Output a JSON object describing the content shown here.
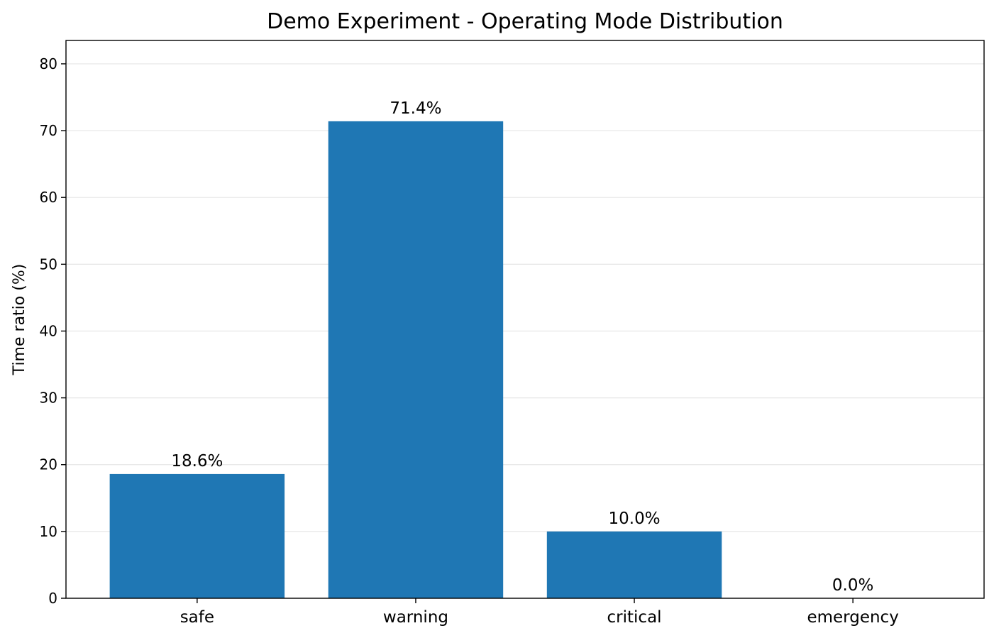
{
  "chart_data": {
    "type": "bar",
    "title": "Demo Experiment - Operating Mode Distribution",
    "xlabel": "",
    "ylabel": "Time ratio (%)",
    "categories": [
      "safe",
      "warning",
      "critical",
      "emergency"
    ],
    "values": [
      18.6,
      71.4,
      10.0,
      0.0
    ],
    "data_labels": [
      "18.6%",
      "71.4%",
      "10.0%",
      "0.0%"
    ],
    "ylim": [
      0,
      83.5
    ],
    "yticks": [
      0,
      10,
      20,
      30,
      40,
      50,
      60,
      70,
      80
    ],
    "grid": "y",
    "legend": "none",
    "bar_color": "#1f77b4",
    "grid_color": "#e6e6e6"
  }
}
